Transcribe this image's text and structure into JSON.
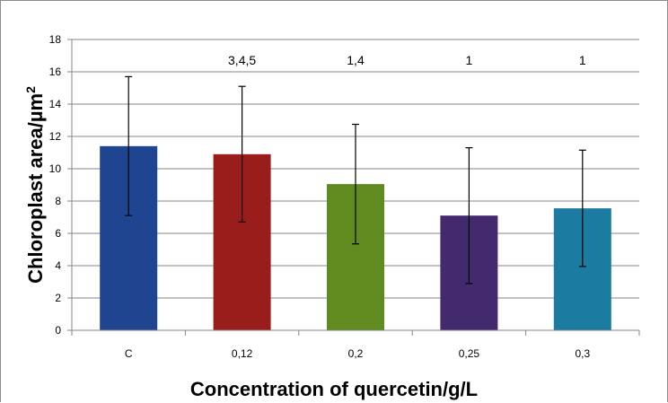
{
  "chart_data": {
    "type": "bar",
    "title": "",
    "xlabel": "Concentration of quercetin/g/L",
    "ylabel": "Chloroplast area/µm",
    "ylabel_superscript": "2",
    "categories": [
      "C",
      "0,12",
      "0,2",
      "0,25",
      "0,3"
    ],
    "values": [
      11.4,
      10.9,
      9.05,
      7.1,
      7.55
    ],
    "error": [
      4.3,
      4.2,
      3.7,
      4.2,
      3.6
    ],
    "annotations": [
      "",
      "3,4,5",
      "1,4",
      "1",
      "1"
    ],
    "bar_colors": [
      "#1F4591",
      "#981D1B",
      "#5F8B1F",
      "#432A6E",
      "#1B7BA1"
    ],
    "ylim": [
      0,
      18
    ],
    "yticks": [
      0,
      2,
      4,
      6,
      8,
      10,
      12,
      14,
      16,
      18
    ],
    "grid": true,
    "legend": "none"
  }
}
